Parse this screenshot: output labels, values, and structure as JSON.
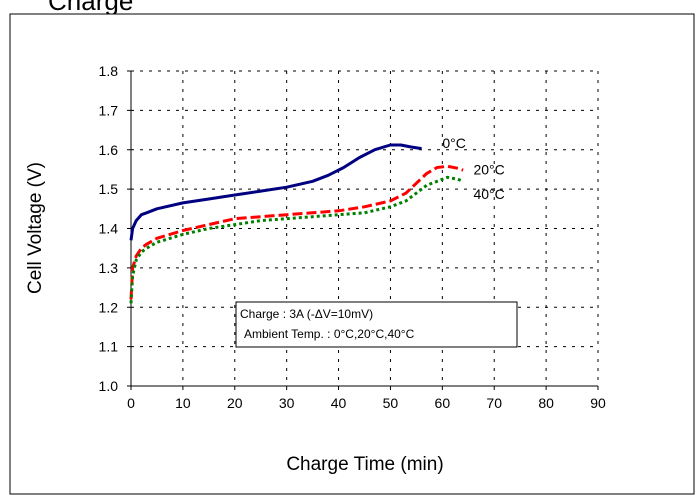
{
  "header": {
    "cut_title": "Charge"
  },
  "chart_data": {
    "type": "line",
    "xlabel": "Charge Time (min)",
    "ylabel": "Cell Voltage (V)",
    "xlim": [
      0,
      90
    ],
    "ylim": [
      1.0,
      1.8
    ],
    "x_ticks": [
      "0",
      "10",
      "20",
      "30",
      "40",
      "50",
      "60",
      "70",
      "80",
      "90"
    ],
    "y_ticks": [
      "1.0",
      "1.1",
      "1.2",
      "1.3",
      "1.4",
      "1.5",
      "1.6",
      "1.7",
      "1.8"
    ],
    "grid": "dotted",
    "annotation": [
      "Charge : 3A (-ΔV=10mV)",
      "Ambient Temp. : 0°C,20°C,40°C"
    ],
    "series": [
      {
        "name": "0°C",
        "color": "#000080",
        "style": "solid",
        "x": [
          0,
          0.3,
          1,
          2,
          3,
          5,
          10,
          15,
          20,
          25,
          30,
          35,
          38,
          41,
          44,
          47,
          50,
          52,
          54,
          56
        ],
        "y": [
          1.37,
          1.4,
          1.42,
          1.435,
          1.44,
          1.45,
          1.465,
          1.475,
          1.485,
          1.495,
          1.505,
          1.52,
          1.535,
          1.555,
          1.58,
          1.6,
          1.612,
          1.612,
          1.607,
          1.603
        ]
      },
      {
        "name": "20°C",
        "color": "#ff0000",
        "style": "dashed",
        "x": [
          0,
          0.3,
          1,
          2,
          3,
          5,
          10,
          15,
          20,
          25,
          30,
          35,
          40,
          45,
          50,
          53,
          55,
          57,
          59,
          61,
          63,
          64
        ],
        "y": [
          1.22,
          1.3,
          1.33,
          1.35,
          1.36,
          1.375,
          1.395,
          1.41,
          1.425,
          1.43,
          1.435,
          1.44,
          1.445,
          1.455,
          1.47,
          1.49,
          1.515,
          1.54,
          1.555,
          1.558,
          1.553,
          1.548
        ]
      },
      {
        "name": "40°C",
        "color": "#008000",
        "style": "dotted",
        "x": [
          0,
          0.3,
          1,
          2,
          3,
          5,
          10,
          15,
          20,
          25,
          30,
          35,
          40,
          45,
          50,
          53,
          55,
          57,
          59,
          61,
          63,
          64
        ],
        "y": [
          1.21,
          1.28,
          1.32,
          1.34,
          1.35,
          1.365,
          1.385,
          1.4,
          1.41,
          1.42,
          1.425,
          1.43,
          1.435,
          1.44,
          1.455,
          1.47,
          1.49,
          1.51,
          1.52,
          1.53,
          1.525,
          1.52
        ]
      }
    ]
  }
}
